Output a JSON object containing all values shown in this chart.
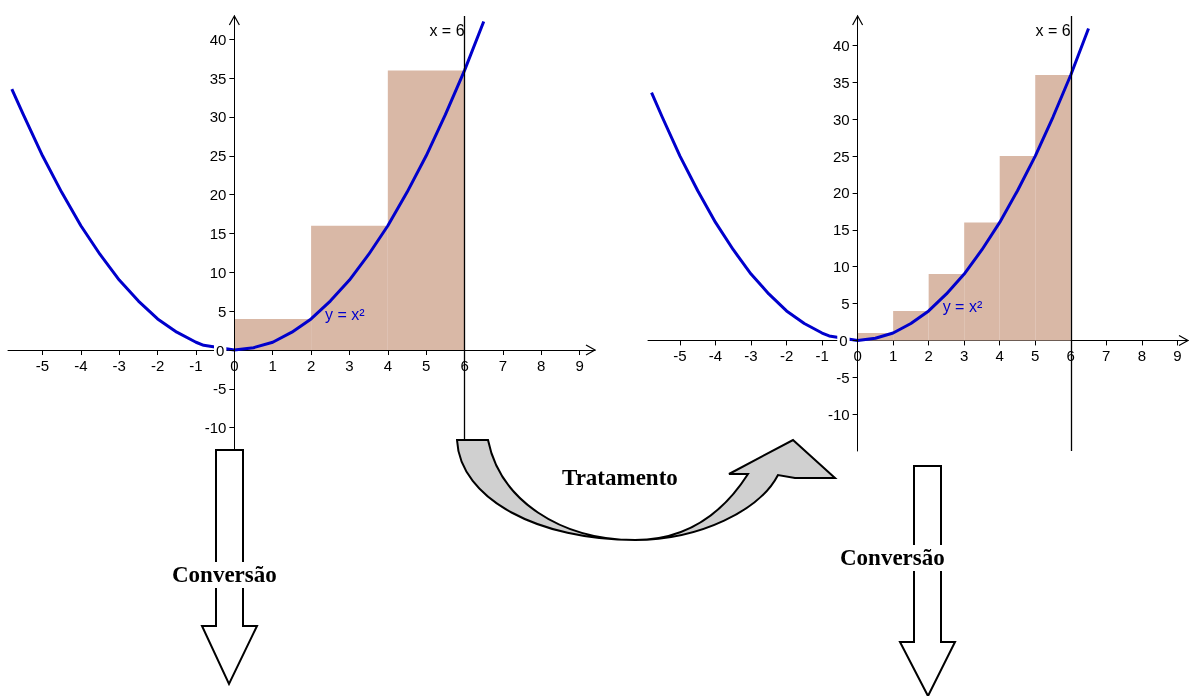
{
  "chart_data": [
    {
      "type": "histogram",
      "xlim": [
        -5.9,
        9.4
      ],
      "ylim": [
        -13,
        43
      ],
      "xticks": [
        -5,
        -4,
        -3,
        -2,
        -1,
        0,
        1,
        2,
        3,
        4,
        5,
        6,
        7,
        8,
        9
      ],
      "yticks": [
        -10,
        -5,
        0,
        5,
        10,
        15,
        20,
        25,
        30,
        35,
        40
      ],
      "grid": false,
      "legend": false,
      "series": [
        {
          "color": "#d9b8a6",
          "bins": [
            0,
            2,
            4,
            6
          ],
          "values": [
            4,
            16,
            36
          ]
        },
        {
          "type": "line",
          "name": "y = x²",
          "color": "#0000cc",
          "marker": "none",
          "x": [
            -5.8,
            -5.5,
            -5,
            -4.5,
            -4,
            -3.5,
            -3,
            -2.5,
            -2,
            -1.5,
            -1,
            -0.8,
            0,
            0.5,
            1,
            1.5,
            2,
            2.5,
            3,
            3.5,
            4,
            4.5,
            5,
            5.5,
            6,
            6.5
          ],
          "values": [
            33.6,
            30.3,
            25,
            20.3,
            16,
            12.3,
            9,
            6.3,
            4,
            2.3,
            1,
            0.6,
            0,
            0.3,
            1,
            2.3,
            4,
            6.3,
            9,
            12.3,
            16,
            20.3,
            25,
            30.3,
            36,
            42.3
          ]
        }
      ],
      "ref_lines": [
        {
          "axis": "x",
          "value": 6,
          "label": "x = 6",
          "color": "#000000"
        }
      ],
      "annotations": [
        "Conversão",
        "Tratamento"
      ]
    },
    {
      "type": "histogram",
      "xlim": [
        -5.9,
        9.3
      ],
      "ylim": [
        -15,
        44
      ],
      "xticks": [
        -5,
        -4,
        -3,
        -2,
        -1,
        0,
        1,
        2,
        3,
        4,
        5,
        6,
        7,
        8,
        9
      ],
      "yticks": [
        -10,
        -5,
        0,
        5,
        10,
        15,
        20,
        25,
        30,
        35,
        40
      ],
      "grid": false,
      "legend": false,
      "series": [
        {
          "color": "#d9b8a6",
          "bins": [
            0,
            1,
            2,
            3,
            4,
            5,
            6
          ],
          "values": [
            1,
            4,
            9,
            16,
            25,
            36
          ]
        },
        {
          "type": "line",
          "name": "y = x²",
          "color": "#0000cc",
          "marker": "none",
          "x": [
            -5.8,
            -5.5,
            -5,
            -4.5,
            -4,
            -3.5,
            -3,
            -2.5,
            -2,
            -1.5,
            -1,
            -0.8,
            0,
            0.5,
            1,
            1.5,
            2,
            2.5,
            3,
            3.5,
            4,
            4.5,
            5,
            5.5,
            6,
            6.5
          ],
          "values": [
            33.6,
            30.3,
            25,
            20.3,
            16,
            12.3,
            9,
            6.3,
            4,
            2.3,
            1,
            0.6,
            0,
            0.3,
            1,
            2.3,
            4,
            6.3,
            9,
            12.3,
            16,
            20.3,
            25,
            30.3,
            36,
            42.3
          ]
        }
      ],
      "ref_lines": [
        {
          "axis": "x",
          "value": 6,
          "label": "x = 6",
          "color": "#000000"
        }
      ],
      "annotations": [
        "Conversão"
      ]
    }
  ]
}
